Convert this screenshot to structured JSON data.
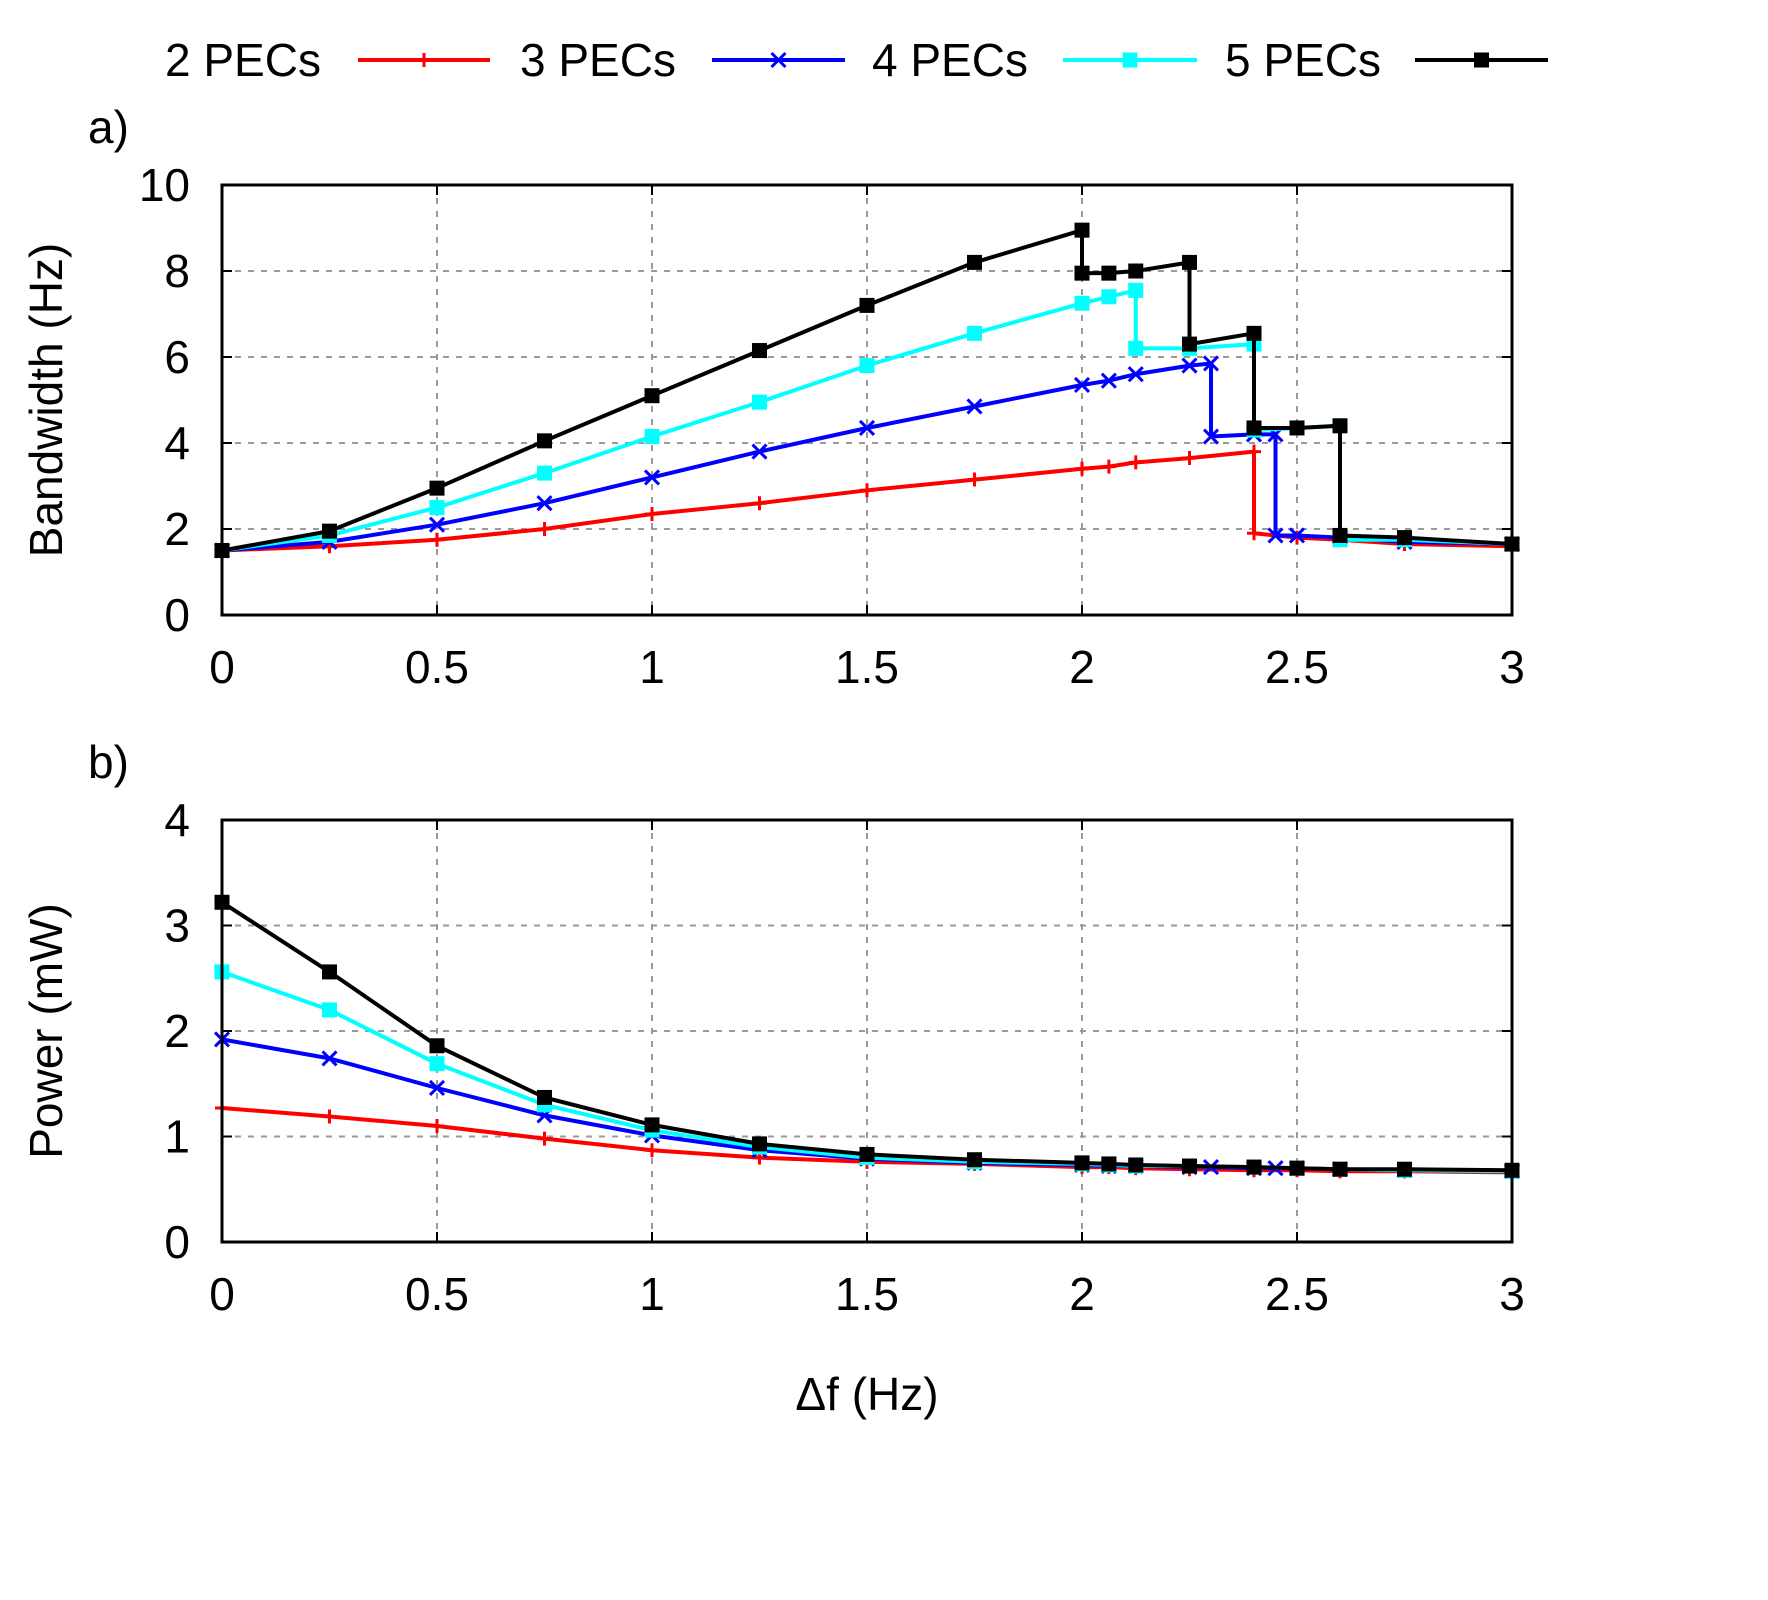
{
  "legend": [
    {
      "label": "2 PECs",
      "color": "#ff0000",
      "marker": "plus"
    },
    {
      "label": "3 PECs",
      "color": "#0000ff",
      "marker": "cross"
    },
    {
      "label": "4 PECs",
      "color": "#00ffff",
      "marker": "square"
    },
    {
      "label": "5 PECs",
      "color": "#000000",
      "marker": "square"
    }
  ],
  "chart_data": [
    {
      "type": "line",
      "panel_label": "a)",
      "xlabel": "",
      "ylabel": "Bandwidth (Hz)",
      "xlim": [
        0,
        3
      ],
      "ylim": [
        0,
        10
      ],
      "xticks": [
        0,
        0.5,
        1,
        1.5,
        2,
        2.5,
        3
      ],
      "yticks": [
        0,
        2,
        4,
        6,
        8,
        10
      ],
      "grid": true,
      "series": [
        {
          "name": "2 PECs",
          "color": "#ff0000",
          "marker": "plus",
          "x": [
            0,
            0.25,
            0.5,
            0.75,
            1,
            1.25,
            1.5,
            1.75,
            2,
            2.0625,
            2.125,
            2.25,
            2.4,
            2.4,
            2.5,
            2.6,
            2.75,
            3
          ],
          "y": [
            1.5,
            1.6,
            1.75,
            2.0,
            2.35,
            2.6,
            2.9,
            3.15,
            3.4,
            3.45,
            3.55,
            3.65,
            3.8,
            1.9,
            1.8,
            1.75,
            1.65,
            1.6
          ]
        },
        {
          "name": "3 PECs",
          "color": "#0000ff",
          "marker": "cross",
          "x": [
            0,
            0.25,
            0.5,
            0.75,
            1,
            1.25,
            1.5,
            1.75,
            2,
            2.0625,
            2.125,
            2.25,
            2.3,
            2.3,
            2.4,
            2.45,
            2.45,
            2.5,
            2.6,
            2.75,
            3
          ],
          "y": [
            1.5,
            1.7,
            2.1,
            2.6,
            3.2,
            3.8,
            4.35,
            4.85,
            5.35,
            5.45,
            5.6,
            5.8,
            5.85,
            4.15,
            4.2,
            4.2,
            1.85,
            1.85,
            1.8,
            1.7,
            1.65
          ]
        },
        {
          "name": "4 PECs",
          "color": "#00ffff",
          "marker": "square",
          "x": [
            0,
            0.25,
            0.5,
            0.75,
            1,
            1.25,
            1.5,
            1.75,
            2,
            2.0625,
            2.125,
            2.125,
            2.25,
            2.4,
            2.4,
            2.5,
            2.6,
            2.6,
            2.75,
            3
          ],
          "y": [
            1.5,
            1.85,
            2.5,
            3.3,
            4.15,
            4.95,
            5.8,
            6.55,
            7.25,
            7.4,
            7.55,
            6.2,
            6.2,
            6.3,
            4.3,
            4.35,
            4.4,
            1.75,
            1.75,
            1.65
          ]
        },
        {
          "name": "5 PECs",
          "color": "#000000",
          "marker": "square",
          "x": [
            0,
            0.25,
            0.5,
            0.75,
            1,
            1.25,
            1.5,
            1.75,
            2,
            2,
            2.0625,
            2.125,
            2.25,
            2.25,
            2.4,
            2.4,
            2.5,
            2.6,
            2.6,
            2.75,
            3
          ],
          "y": [
            1.5,
            1.95,
            2.95,
            4.05,
            5.1,
            6.15,
            7.2,
            8.2,
            8.95,
            7.95,
            7.95,
            8.0,
            8.2,
            6.3,
            6.55,
            4.35,
            4.35,
            4.4,
            1.85,
            1.8,
            1.65
          ]
        }
      ]
    },
    {
      "type": "line",
      "panel_label": "b)",
      "xlabel": "Δf (Hz)",
      "ylabel": "Power (mW)",
      "xlim": [
        0,
        3
      ],
      "ylim": [
        0,
        4
      ],
      "xticks": [
        0,
        0.5,
        1,
        1.5,
        2,
        2.5,
        3
      ],
      "yticks": [
        0,
        1,
        2,
        3,
        4
      ],
      "grid": true,
      "series": [
        {
          "name": "2 PECs",
          "color": "#ff0000",
          "marker": "plus",
          "x": [
            0,
            0.25,
            0.5,
            0.75,
            1,
            1.25,
            1.5,
            1.75,
            2,
            2.0625,
            2.125,
            2.25,
            2.4,
            2.5,
            2.6,
            2.75,
            3
          ],
          "y": [
            1.27,
            1.19,
            1.1,
            0.98,
            0.87,
            0.8,
            0.76,
            0.74,
            0.71,
            0.71,
            0.7,
            0.69,
            0.68,
            0.68,
            0.67,
            0.67,
            0.66
          ]
        },
        {
          "name": "3 PECs",
          "color": "#0000ff",
          "marker": "cross",
          "x": [
            0,
            0.25,
            0.5,
            0.75,
            1,
            1.25,
            1.5,
            1.75,
            2,
            2.0625,
            2.125,
            2.25,
            2.3,
            2.4,
            2.45,
            2.5,
            2.6,
            2.75,
            3
          ],
          "y": [
            1.92,
            1.74,
            1.46,
            1.2,
            1.01,
            0.87,
            0.79,
            0.75,
            0.73,
            0.72,
            0.72,
            0.71,
            0.71,
            0.7,
            0.7,
            0.7,
            0.69,
            0.68,
            0.67
          ]
        },
        {
          "name": "4 PECs",
          "color": "#00ffff",
          "marker": "square",
          "x": [
            0,
            0.25,
            0.5,
            0.75,
            1,
            1.25,
            1.5,
            1.75,
            2,
            2.0625,
            2.125,
            2.25,
            2.4,
            2.5,
            2.6,
            2.75,
            3
          ],
          "y": [
            2.56,
            2.2,
            1.69,
            1.3,
            1.06,
            0.9,
            0.8,
            0.76,
            0.74,
            0.73,
            0.72,
            0.72,
            0.71,
            0.7,
            0.69,
            0.68,
            0.67
          ]
        },
        {
          "name": "5 PECs",
          "color": "#000000",
          "marker": "square",
          "x": [
            0,
            0.25,
            0.5,
            0.75,
            1,
            1.25,
            1.5,
            1.75,
            2,
            2.0625,
            2.125,
            2.25,
            2.4,
            2.5,
            2.6,
            2.75,
            3
          ],
          "y": [
            3.22,
            2.56,
            1.86,
            1.37,
            1.11,
            0.93,
            0.83,
            0.78,
            0.75,
            0.74,
            0.73,
            0.72,
            0.71,
            0.7,
            0.69,
            0.69,
            0.68
          ]
        }
      ]
    }
  ]
}
